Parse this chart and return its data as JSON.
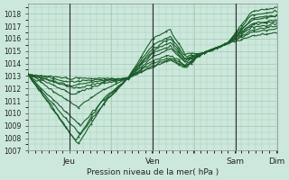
{
  "title": "Pression niveau de la mer( hPa )",
  "bg_color": "#cce8dc",
  "plot_bg_color": "#cce8dc",
  "grid_color": "#a8cdb8",
  "line_color": "#1a5c2a",
  "ylim": [
    1007,
    1018.8
  ],
  "yticks": [
    1007,
    1008,
    1009,
    1010,
    1011,
    1012,
    1013,
    1014,
    1015,
    1016,
    1017,
    1018
  ],
  "xtick_labels": [
    "",
    "Jeu",
    "",
    "Ven",
    "",
    "Sam",
    "",
    "Dim"
  ],
  "day_vlines": [
    0.166,
    0.5,
    0.833
  ],
  "n_steps": 120
}
